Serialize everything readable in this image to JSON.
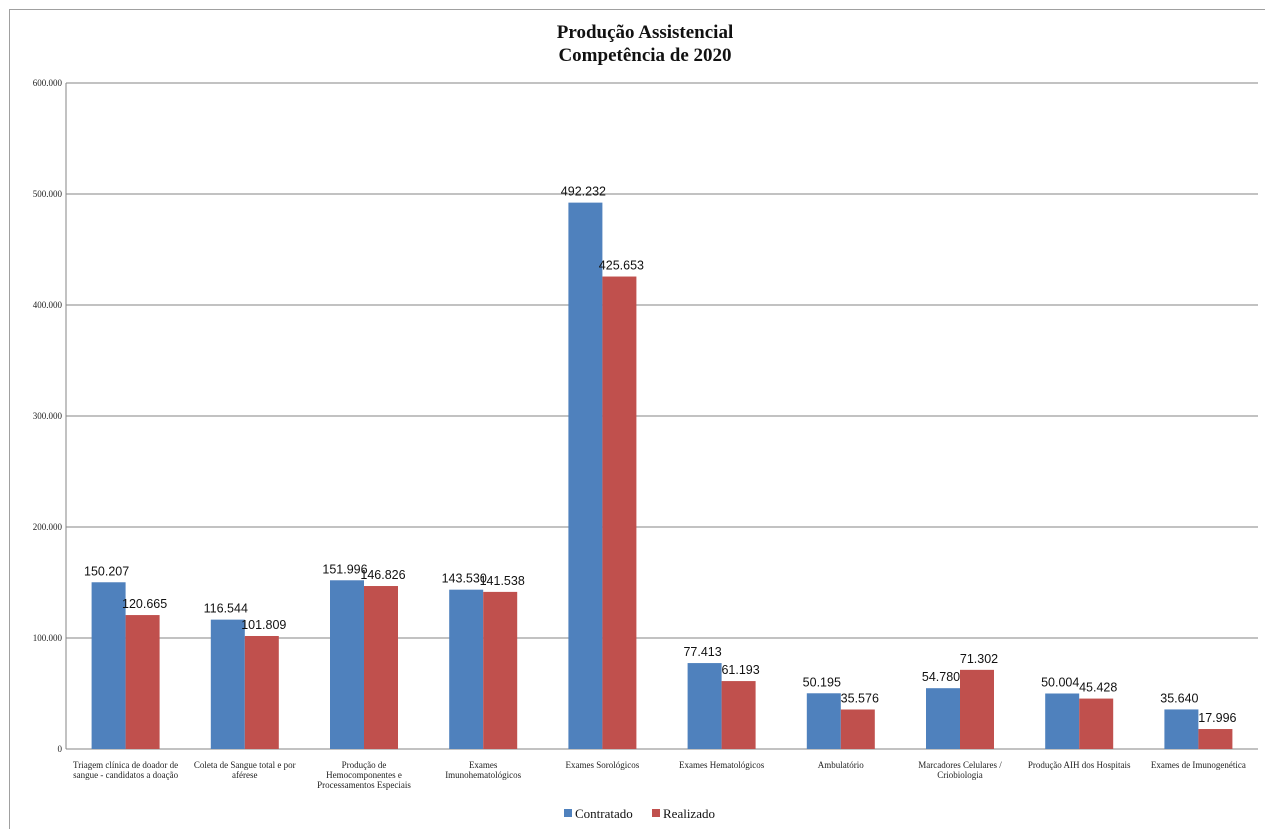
{
  "chart_data": {
    "type": "bar",
    "title": [
      "Produção Assistencial",
      "Competência de 2020"
    ],
    "categories": [
      [
        "Triagem clínica de doador de",
        "sangue - candidatos a doação"
      ],
      [
        "Coleta de Sangue total e por",
        "aférese"
      ],
      [
        "Produção de",
        "Hemocomponentes e",
        "Processamentos Especiais"
      ],
      [
        "Exames",
        "Imunohematológicos"
      ],
      [
        "Exames Sorológicos"
      ],
      [
        "Exames Hematológicos"
      ],
      [
        "Ambulatório"
      ],
      [
        "Marcadores Celulares /",
        "Criobiologia"
      ],
      [
        "Produção AIH dos Hospitais"
      ],
      [
        "Exames de Imunogenética"
      ]
    ],
    "series": [
      {
        "name": "Contratado",
        "color": "#4f81bd",
        "values": [
          150207,
          116544,
          151996,
          143530,
          492232,
          77413,
          50195,
          54780,
          50004,
          35640
        ],
        "labels": [
          "150.207",
          "116.544",
          "151.996",
          "143.530",
          "492.232",
          "77.413",
          "50.195",
          "54.780",
          "50.004",
          "35.640"
        ]
      },
      {
        "name": "Realizado",
        "color": "#c0504d",
        "values": [
          120665,
          101809,
          146826,
          141538,
          425653,
          61193,
          35576,
          71302,
          45428,
          17996
        ],
        "labels": [
          "120.665",
          "101.809",
          "146.826",
          "141.538",
          "425.653",
          "61.193",
          "35.576",
          "71.302",
          "45.428",
          "17.996"
        ]
      }
    ],
    "ylim": [
      0,
      600000
    ],
    "yticks": [
      0,
      100000,
      200000,
      300000,
      400000,
      500000,
      600000
    ],
    "ytick_labels": [
      "0",
      "100.000",
      "200.000",
      "300.000",
      "400.000",
      "500.000",
      "600.000"
    ],
    "grid": true,
    "legend_position": "bottom",
    "gridline_color": "#868686"
  }
}
